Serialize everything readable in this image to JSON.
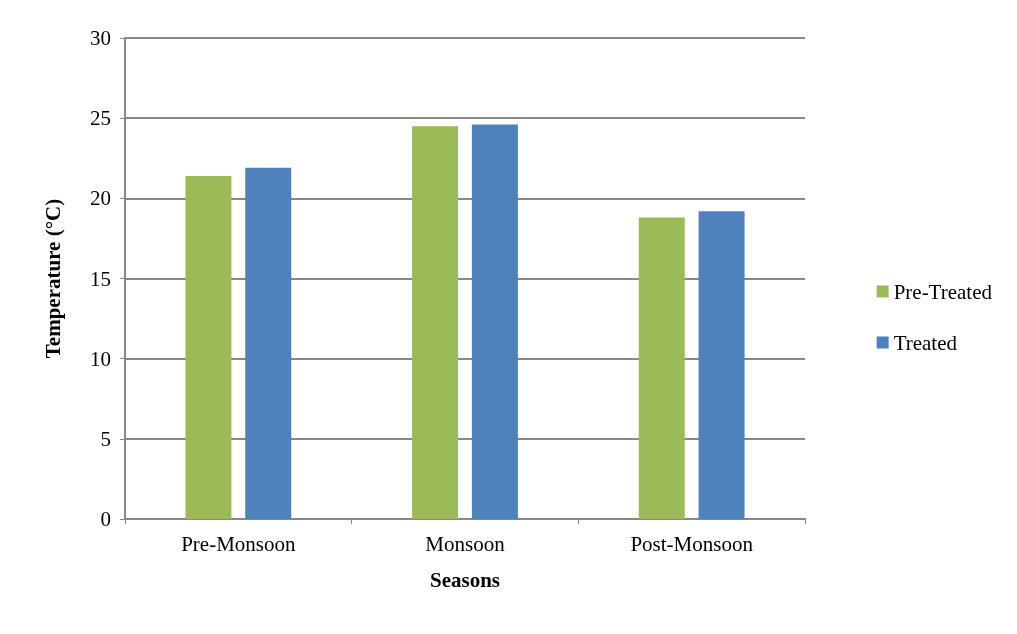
{
  "chart_data": {
    "type": "bar",
    "xlabel": "Seasons",
    "ylabel": "Temperature (°C)",
    "categories": [
      "Pre-Monsoon",
      "Monsoon",
      "Post-Monsoon"
    ],
    "series": [
      {
        "name": "Pre-Treated",
        "color": "#9bbb59",
        "values": [
          21.4,
          24.5,
          18.8
        ]
      },
      {
        "name": "Treated",
        "color": "#4f81bd",
        "values": [
          21.9,
          24.6,
          19.2
        ]
      }
    ],
    "ylim": [
      0,
      30
    ],
    "yticks": [
      0,
      5,
      10,
      15,
      20,
      25,
      30
    ],
    "grid": "y",
    "legend": "right"
  }
}
